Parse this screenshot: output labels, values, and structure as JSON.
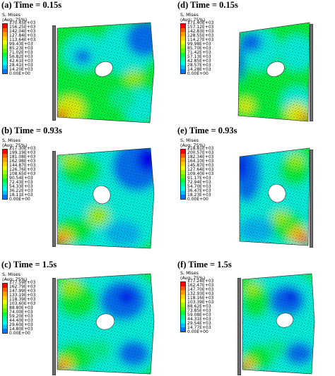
{
  "colors": {
    "wall": "#6d6d6d",
    "mesh": "#1a1a1a",
    "scale": [
      "#ff0000",
      "#ff5a00",
      "#ffa000",
      "#ffd200",
      "#eaff00",
      "#a6ff00",
      "#5aff00",
      "#00ff3c",
      "#00ff9a",
      "#00ffe8",
      "#00c0ff",
      "#0076ff",
      "#0000ff"
    ]
  },
  "panels": [
    {
      "title": "(a)  Time = 0.15s",
      "legend_header": [
        "S, Mises",
        "(Avg: 75%)"
      ],
      "legend_values": [
        "170.45E+03",
        "156.25E+03",
        "142.04E+03",
        "127.84E+03",
        "113.64E+03",
        "99.43E+03",
        "85.23E+03",
        "71.02E+03",
        "56.82E+03",
        "42.61E+03",
        "28.41E+03",
        "14.20E+03",
        "0.00E+00"
      ],
      "wall_side": "left"
    },
    {
      "title": "(d)  Time = 0.15s",
      "legend_header": [
        "S, Mises",
        "(Avg: 75%)"
      ],
      "legend_values": [
        "171.40E+03",
        "157.12E+03",
        "142.83E+03",
        "128.55E+03",
        "114.27E+03",
        "99.98E+03",
        "85.70E+03",
        "71.42E+03",
        "57.13E+03",
        "42.85E+03",
        "28.57E+03",
        "14.28E+03",
        "0.00E+00"
      ],
      "wall_side": "right"
    },
    {
      "title": "(b)  Time = 0.93s",
      "legend_header": [
        "S, Mises",
        "(Avg: 75%)"
      ],
      "legend_values": [
        "217.30E+03",
        "199.19E+03",
        "181.08E+03",
        "162.98E+03",
        "144.87E+03",
        "126.76E+03",
        "108.65E+03",
        "90.54E+03",
        "72.43E+03",
        "54.33E+03",
        "36.22E+03",
        "18.11E+03",
        "0.00E+00"
      ],
      "wall_side": "left"
    },
    {
      "title": "(e)  Time = 0.93s",
      "legend_header": [
        "S, Mises",
        "(Avg: 75%)"
      ],
      "legend_values": [
        "218.81E+03",
        "200.57E+03",
        "182.34E+03",
        "164.10E+03",
        "145.87E+03",
        "127.64E+03",
        "109.40E+03",
        "91.17E+03",
        "72.94E+03",
        "54.70E+03",
        "36.47E+03",
        "18.23E+03",
        "0.00E+00"
      ],
      "wall_side": "right"
    },
    {
      "title": "(c)  Time = 1.5s",
      "legend_header": [
        "S, Mises",
        "(Avg: 75%)"
      ],
      "legend_values": [
        "177.59E+03",
        "162.79E+03",
        "147.99E+03",
        "133.19E+03",
        "118.39E+03",
        "103.60E+03",
        "88.80E+03",
        "74.00E+03",
        "59.20E+03",
        "44.40E+03",
        "29.60E+03",
        "14.80E+03",
        "0.00E+00"
      ],
      "wall_side": "left"
    },
    {
      "title": "(f)  Time = 1.5s",
      "legend_header": [
        "S, Mises",
        "(Avg: 75%)"
      ],
      "legend_values": [
        "177.24E+03",
        "162.47E+03",
        "147.70E+03",
        "132.93E+03",
        "118.16E+03",
        "103.39E+03",
        "88.62E+03",
        "73.85E+03",
        "59.08E+03",
        "44.31E+03",
        "29.54E+03",
        "14.77E+03",
        "0.00E+00"
      ],
      "wall_side": "right"
    }
  ]
}
